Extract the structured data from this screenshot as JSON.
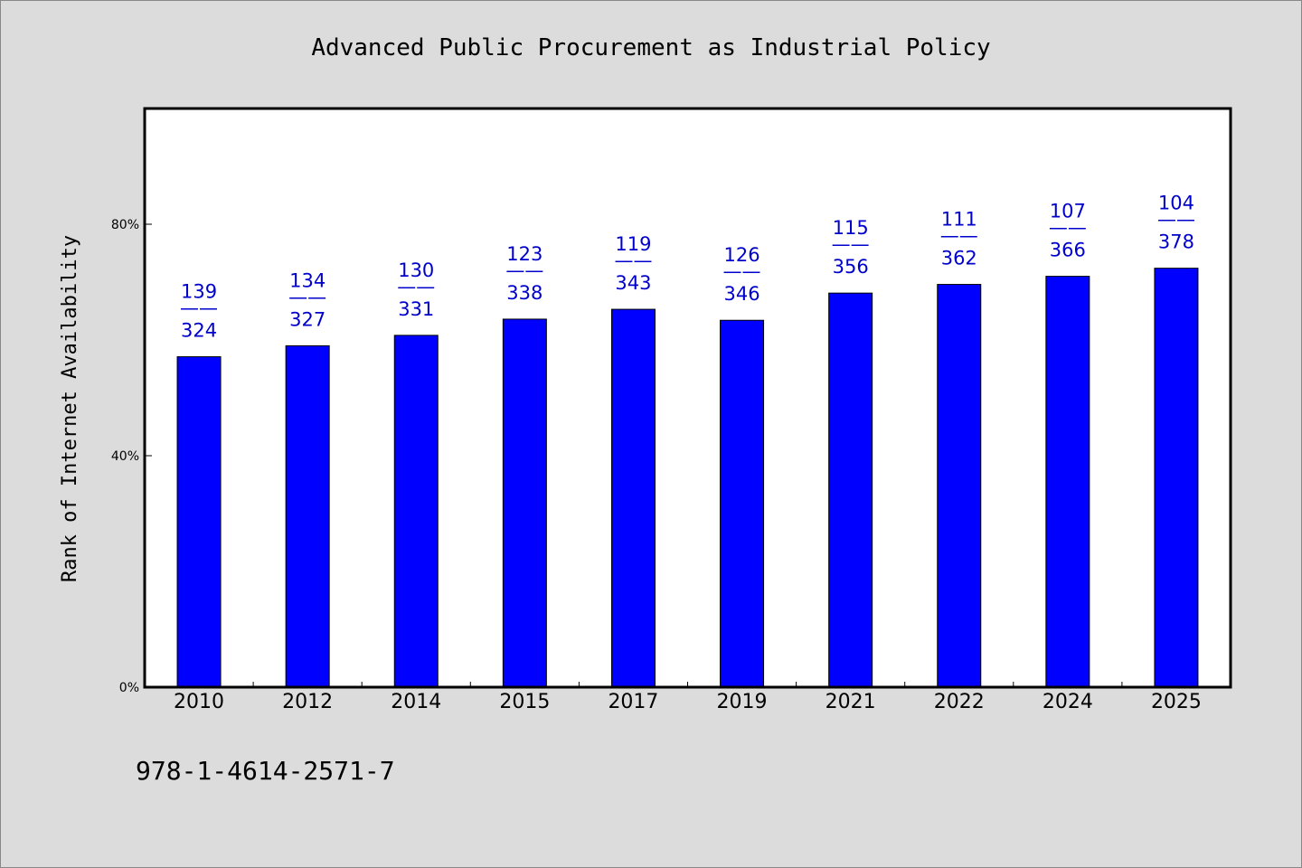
{
  "chart_data": {
    "type": "bar",
    "title": "Advanced Public Procurement as Industrial Policy",
    "ylabel": "Rank of Internet Availability",
    "xlabel": "",
    "categories": [
      "2010",
      "2012",
      "2014",
      "2015",
      "2017",
      "2019",
      "2021",
      "2022",
      "2024",
      "2025"
    ],
    "values": [
      0.571,
      0.59,
      0.608,
      0.636,
      0.653,
      0.634,
      0.681,
      0.696,
      0.71,
      0.724
    ],
    "data_labels": [
      {
        "top": "139",
        "sep": "——",
        "bottom": "324"
      },
      {
        "top": "134",
        "sep": "——",
        "bottom": "327"
      },
      {
        "top": "130",
        "sep": "——",
        "bottom": "331"
      },
      {
        "top": "123",
        "sep": "——",
        "bottom": "338"
      },
      {
        "top": "119",
        "sep": "——",
        "bottom": "343"
      },
      {
        "top": "126",
        "sep": "——",
        "bottom": "346"
      },
      {
        "top": "115",
        "sep": "——",
        "bottom": "356"
      },
      {
        "top": "111",
        "sep": "——",
        "bottom": "362"
      },
      {
        "top": "107",
        "sep": "——",
        "bottom": "366"
      },
      {
        "top": "104",
        "sep": "——",
        "bottom": "378"
      }
    ],
    "ylim": [
      0,
      1.0
    ],
    "yticks": [
      0,
      0.4,
      0.8
    ],
    "ytick_labels": [
      "0%",
      "40%",
      "80%"
    ],
    "grid": false,
    "bar_color": "#0000ff",
    "label_color": "#0000cc"
  },
  "footer": {
    "code": "978-1-4614-2571-7"
  }
}
